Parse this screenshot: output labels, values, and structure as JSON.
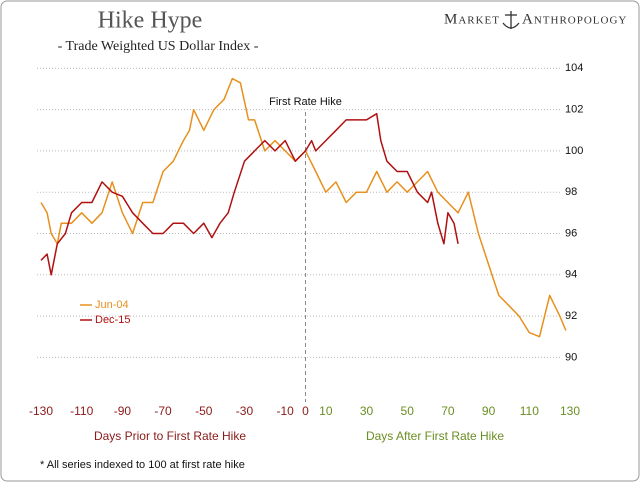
{
  "chart_data": {
    "type": "line",
    "title": "Hike Hype",
    "subtitle": "- Trade Weighted US Dollar Index -",
    "xlabel_left": "Days Prior to First Rate Hike",
    "xlabel_right": "Days After First Rate Hike",
    "footnote": "* All series indexed to 100 at first rate hike",
    "annotation": {
      "text": "First Rate Hike",
      "x": 0
    },
    "xlim": [
      -130,
      130
    ],
    "ylim": [
      89,
      104.5
    ],
    "xticks": [
      -130,
      -110,
      -90,
      -70,
      -50,
      -30,
      -10,
      0,
      10,
      30,
      50,
      70,
      90,
      110,
      130
    ],
    "yticks": [
      90,
      92,
      94,
      96,
      98,
      100,
      102,
      104
    ],
    "grid": true,
    "legend": "lower-left",
    "series": [
      {
        "name": "Jun-04",
        "color": "#e8901e",
        "x": [
          -130,
          -127,
          -125,
          -122,
          -120,
          -115,
          -110,
          -105,
          -100,
          -95,
          -90,
          -85,
          -80,
          -75,
          -70,
          -65,
          -60,
          -57,
          -55,
          -50,
          -45,
          -40,
          -36,
          -32,
          -28,
          -25,
          -20,
          -15,
          -10,
          -5,
          0,
          5,
          10,
          15,
          20,
          25,
          30,
          35,
          40,
          45,
          50,
          55,
          60,
          65,
          70,
          75,
          80,
          85,
          90,
          95,
          100,
          105,
          110,
          115,
          120,
          125,
          128
        ],
        "values": [
          97.5,
          97,
          96,
          95.5,
          96.5,
          96.5,
          97,
          96.5,
          97,
          98.5,
          97,
          96,
          97.5,
          97.5,
          99,
          99.5,
          100.5,
          101,
          102,
          101,
          102,
          102.5,
          103.5,
          103.3,
          101.5,
          101.5,
          100,
          100.5,
          100,
          99.5,
          100,
          99,
          98,
          98.5,
          97.5,
          98,
          98,
          99,
          98,
          98.5,
          98,
          98.5,
          99,
          98,
          97.5,
          97,
          98,
          96,
          94.5,
          93,
          92.5,
          92,
          91.2,
          91,
          93,
          92,
          91.3
        ]
      },
      {
        "name": "Dec-15",
        "color": "#b01010",
        "x": [
          -130,
          -127,
          -125,
          -122,
          -118,
          -115,
          -110,
          -105,
          -100,
          -95,
          -90,
          -85,
          -80,
          -75,
          -70,
          -65,
          -60,
          -55,
          -50,
          -46,
          -42,
          -38,
          -35,
          -30,
          -25,
          -20,
          -15,
          -10,
          -5,
          0,
          3,
          5,
          10,
          15,
          20,
          25,
          30,
          35,
          37,
          40,
          45,
          50,
          55,
          60,
          62,
          65,
          68,
          70,
          73,
          75
        ],
        "values": [
          94.7,
          95,
          94,
          95.5,
          96,
          97,
          97.5,
          97.5,
          98.5,
          98,
          97.8,
          97,
          96.5,
          96,
          96,
          96.5,
          96.5,
          96,
          96.5,
          95.8,
          96.5,
          97,
          98,
          99.5,
          100,
          100.5,
          100,
          100.5,
          99.5,
          100,
          100.5,
          100,
          100.5,
          101,
          101.5,
          101.5,
          101.5,
          101.8,
          100.5,
          99.5,
          99,
          99,
          98,
          97.5,
          98,
          96.5,
          95.5,
          97,
          96.5,
          95.5
        ]
      }
    ]
  },
  "logo": [
    "Market",
    "Anthropology"
  ]
}
